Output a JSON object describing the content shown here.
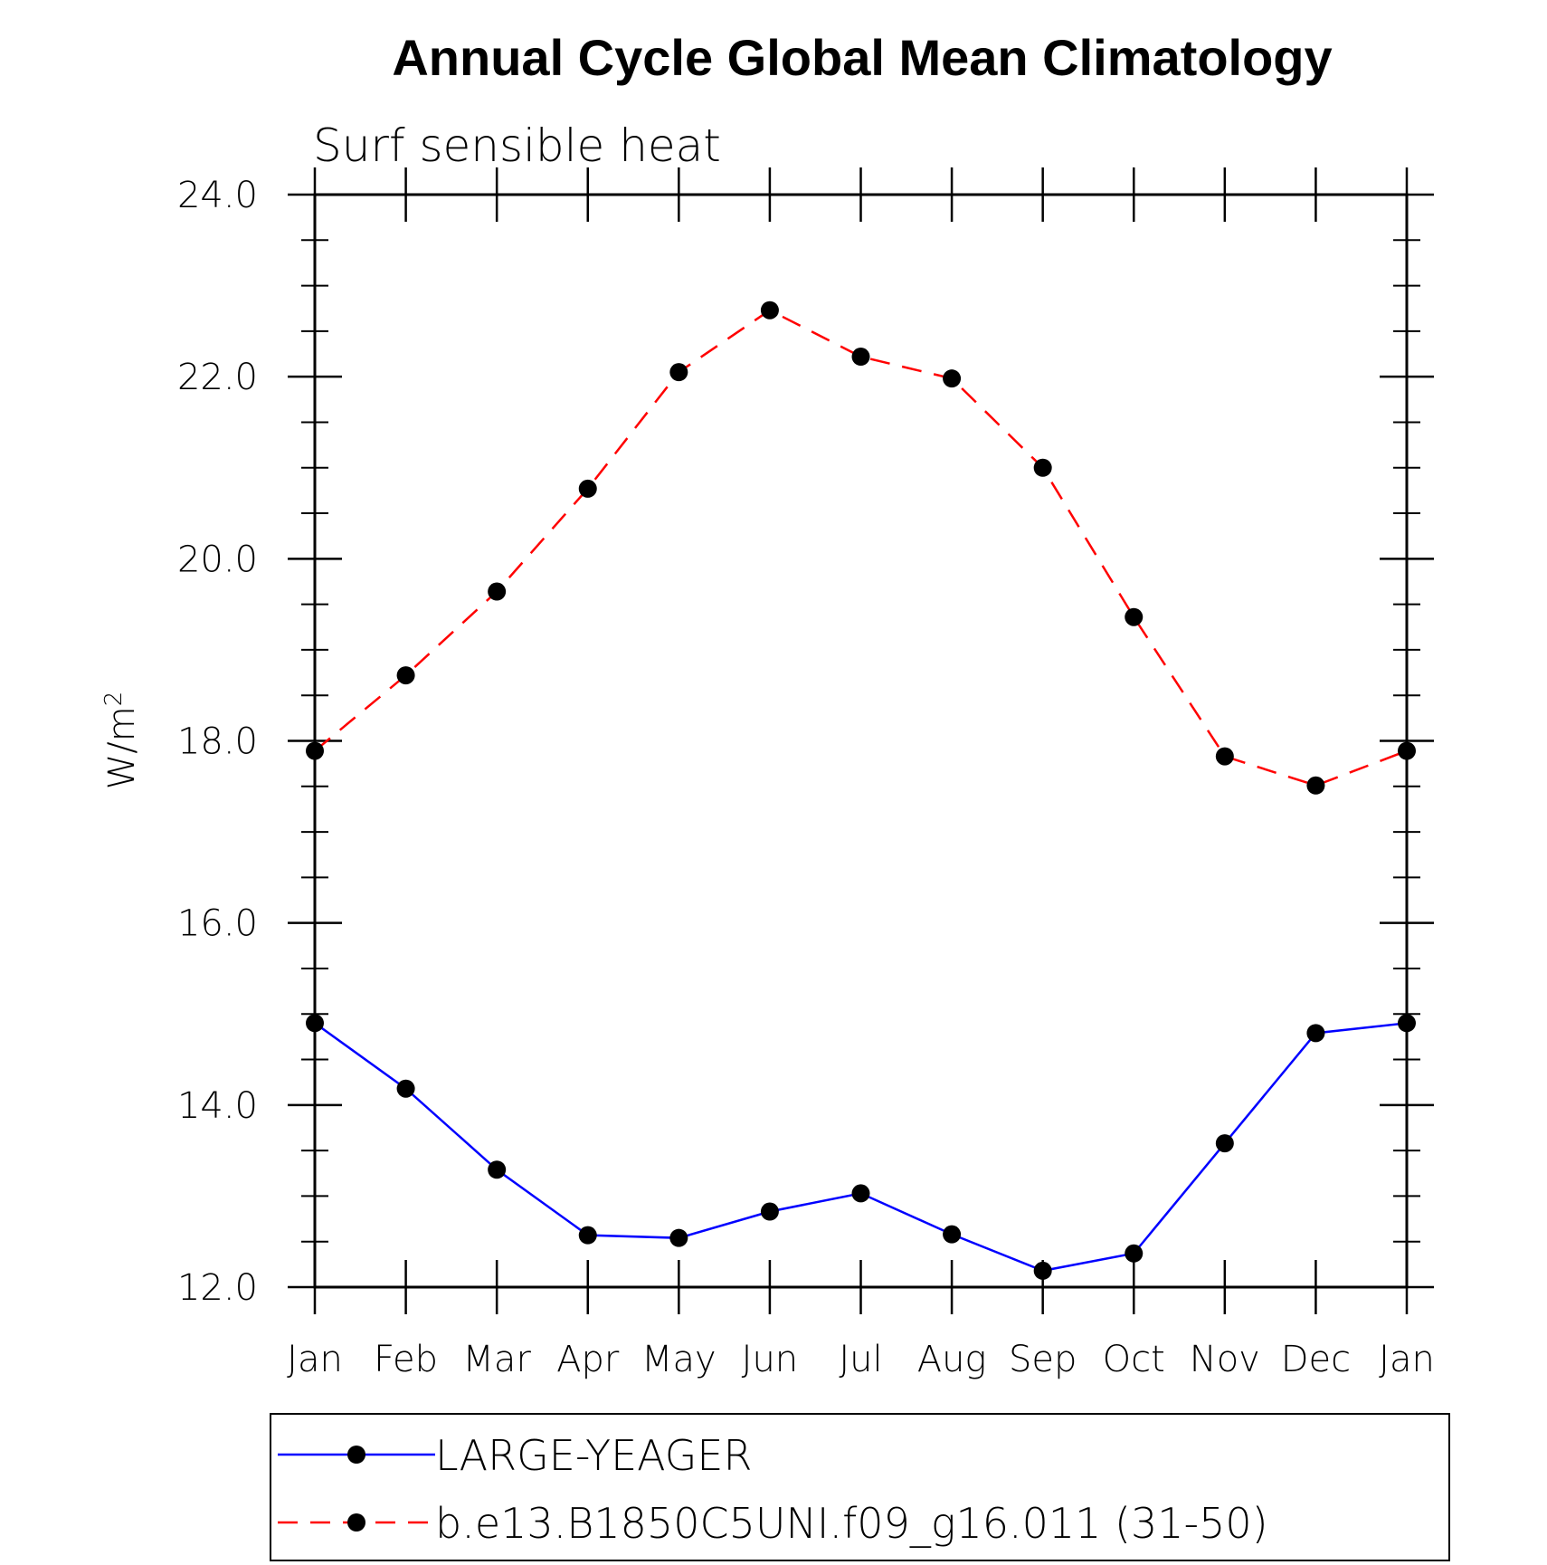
{
  "chart_data": {
    "type": "line",
    "title": "Annual Cycle Global Mean Climatology",
    "subtitle": "Surf sensible heat",
    "ylabel": "W/m",
    "ylabel_sup": "2",
    "ylim": [
      12.0,
      24.0
    ],
    "yticks": [
      "12.0",
      "14.0",
      "16.0",
      "18.0",
      "20.0",
      "22.0",
      "24.0"
    ],
    "categories": [
      "Jan",
      "Feb",
      "Mar",
      "Apr",
      "May",
      "Jun",
      "Jul",
      "Aug",
      "Sep",
      "Oct",
      "Nov",
      "Dec",
      "Jan"
    ],
    "series": [
      {
        "name": "LARGE-YEAGER",
        "color": "#0000ff",
        "dash": "solid",
        "values": [
          14.9,
          14.18,
          13.29,
          12.57,
          12.54,
          12.83,
          13.03,
          12.58,
          12.18,
          12.37,
          13.58,
          14.79,
          14.9
        ]
      },
      {
        "name": "b.e13.B1850C5UNI.f09_g16.011 (31-50)",
        "color": "#ff0000",
        "dash": "dashed",
        "values": [
          17.89,
          18.72,
          19.64,
          20.77,
          22.05,
          22.73,
          22.22,
          21.98,
          21.0,
          19.36,
          17.83,
          17.51,
          17.89
        ]
      }
    ],
    "grid": false,
    "legend_position": "bottom"
  }
}
